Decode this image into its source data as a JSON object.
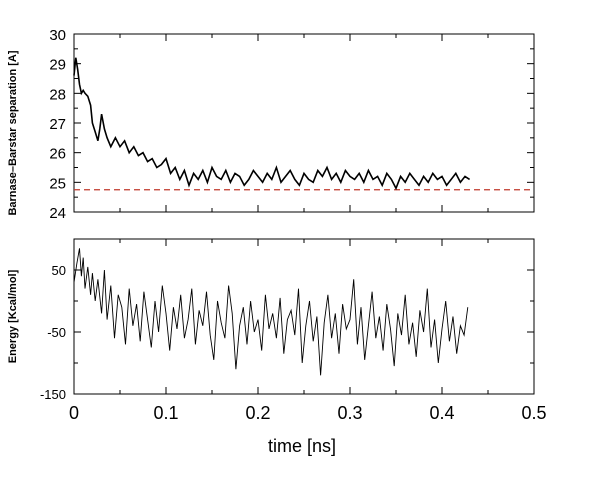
{
  "chart_data": [
    {
      "type": "line",
      "ylabel": "Barnase–Barstar separation [A]",
      "xlim": [
        0,
        0.5
      ],
      "ylim": [
        24,
        30
      ],
      "yticks": [
        24,
        25,
        26,
        27,
        28,
        29,
        30
      ],
      "x_tick_labels_shown": false,
      "grid": false,
      "series": [
        {
          "x": [
            0.0,
            0.002,
            0.004,
            0.006,
            0.008,
            0.01,
            0.012,
            0.015,
            0.018,
            0.02,
            0.023,
            0.026,
            0.028,
            0.03,
            0.033,
            0.036,
            0.04,
            0.045,
            0.05,
            0.055,
            0.06,
            0.065,
            0.07,
            0.075,
            0.08,
            0.085,
            0.09,
            0.095,
            0.1,
            0.105,
            0.11,
            0.115,
            0.12,
            0.125,
            0.13,
            0.135,
            0.14,
            0.145,
            0.15,
            0.155,
            0.16,
            0.165,
            0.17,
            0.175,
            0.18,
            0.185,
            0.19,
            0.195,
            0.2,
            0.205,
            0.21,
            0.215,
            0.22,
            0.225,
            0.23,
            0.235,
            0.24,
            0.245,
            0.25,
            0.255,
            0.26,
            0.265,
            0.27,
            0.275,
            0.28,
            0.285,
            0.29,
            0.295,
            0.3,
            0.305,
            0.31,
            0.315,
            0.32,
            0.325,
            0.33,
            0.335,
            0.34,
            0.345,
            0.35,
            0.355,
            0.36,
            0.365,
            0.37,
            0.375,
            0.38,
            0.385,
            0.39,
            0.395,
            0.4,
            0.405,
            0.41,
            0.415,
            0.42,
            0.425,
            0.43
          ],
          "values": [
            28.6,
            29.2,
            28.8,
            28.3,
            28.0,
            28.1,
            28.0,
            27.9,
            27.6,
            27.0,
            26.7,
            26.4,
            26.8,
            27.3,
            26.8,
            26.5,
            26.2,
            26.5,
            26.2,
            26.4,
            26.0,
            26.2,
            25.9,
            26.0,
            25.7,
            25.8,
            25.5,
            25.6,
            25.8,
            25.3,
            25.5,
            25.1,
            25.4,
            24.9,
            25.3,
            25.1,
            25.4,
            25.0,
            25.5,
            25.2,
            25.1,
            25.4,
            25.0,
            25.3,
            25.2,
            24.9,
            25.1,
            25.4,
            25.2,
            25.0,
            25.3,
            25.1,
            25.5,
            25.0,
            25.2,
            25.4,
            25.1,
            24.9,
            25.3,
            25.1,
            25.0,
            25.4,
            25.2,
            25.5,
            25.1,
            25.3,
            25.0,
            25.4,
            25.2,
            25.1,
            25.3,
            25.0,
            25.4,
            25.1,
            25.2,
            24.9,
            25.3,
            25.1,
            24.8,
            25.2,
            25.0,
            25.3,
            25.1,
            24.9,
            25.2,
            25.0,
            25.3,
            25.1,
            25.2,
            24.9,
            25.1,
            25.3,
            25.0,
            25.2,
            25.1
          ]
        }
      ],
      "reference_line": {
        "y": 24.75,
        "color": "#c0392b",
        "style": "dashed"
      }
    },
    {
      "type": "line",
      "xlabel": "time [ns]",
      "ylabel": "Energy [Kcal/mol]",
      "xlim": [
        0,
        0.5
      ],
      "ylim": [
        -150,
        100
      ],
      "xticks": [
        0,
        0.1,
        0.2,
        0.3,
        0.4,
        0.5
      ],
      "xtick_labels": [
        "0",
        "0.1",
        "0.2",
        "0.3",
        "0.4",
        "0.5"
      ],
      "yticks": [
        -150,
        -50,
        50
      ],
      "grid": false,
      "series": [
        {
          "x": [
            0.0,
            0.003,
            0.006,
            0.008,
            0.01,
            0.012,
            0.015,
            0.018,
            0.02,
            0.023,
            0.026,
            0.03,
            0.033,
            0.036,
            0.04,
            0.044,
            0.048,
            0.052,
            0.056,
            0.06,
            0.064,
            0.068,
            0.072,
            0.076,
            0.08,
            0.084,
            0.088,
            0.092,
            0.096,
            0.1,
            0.104,
            0.108,
            0.112,
            0.116,
            0.12,
            0.124,
            0.128,
            0.132,
            0.136,
            0.14,
            0.144,
            0.148,
            0.152,
            0.156,
            0.16,
            0.164,
            0.168,
            0.172,
            0.176,
            0.18,
            0.184,
            0.188,
            0.192,
            0.196,
            0.2,
            0.204,
            0.208,
            0.212,
            0.216,
            0.22,
            0.224,
            0.228,
            0.232,
            0.236,
            0.24,
            0.244,
            0.248,
            0.252,
            0.256,
            0.26,
            0.264,
            0.268,
            0.272,
            0.276,
            0.28,
            0.284,
            0.288,
            0.292,
            0.296,
            0.3,
            0.304,
            0.308,
            0.312,
            0.316,
            0.32,
            0.324,
            0.328,
            0.332,
            0.336,
            0.34,
            0.344,
            0.348,
            0.352,
            0.356,
            0.36,
            0.364,
            0.368,
            0.372,
            0.376,
            0.38,
            0.384,
            0.388,
            0.392,
            0.396,
            0.4,
            0.404,
            0.408,
            0.412,
            0.416,
            0.42,
            0.424,
            0.428
          ],
          "values": [
            30,
            60,
            85,
            40,
            70,
            20,
            55,
            10,
            45,
            0,
            35,
            -20,
            50,
            -30,
            25,
            -60,
            10,
            -10,
            -70,
            20,
            -40,
            -5,
            -65,
            15,
            -30,
            -75,
            0,
            -50,
            25,
            -20,
            -80,
            -10,
            -45,
            10,
            -60,
            -30,
            20,
            -70,
            -15,
            -40,
            15,
            -55,
            -95,
            0,
            -35,
            -60,
            25,
            -20,
            -110,
            -40,
            -10,
            -70,
            0,
            -50,
            -30,
            -80,
            10,
            -45,
            -20,
            -60,
            5,
            -85,
            -30,
            -15,
            -55,
            20,
            -100,
            -40,
            0,
            -65,
            -25,
            -120,
            -35,
            10,
            -60,
            -20,
            -85,
            -5,
            -45,
            -30,
            35,
            -70,
            -10,
            -95,
            -40,
            15,
            -60,
            -25,
            -80,
            -5,
            -45,
            -105,
            -20,
            -55,
            10,
            -70,
            -35,
            -90,
            -15,
            -50,
            20,
            -75,
            -30,
            -100,
            -45,
            0,
            -65,
            -25,
            -85,
            -40,
            -55,
            -10
          ]
        }
      ]
    }
  ]
}
